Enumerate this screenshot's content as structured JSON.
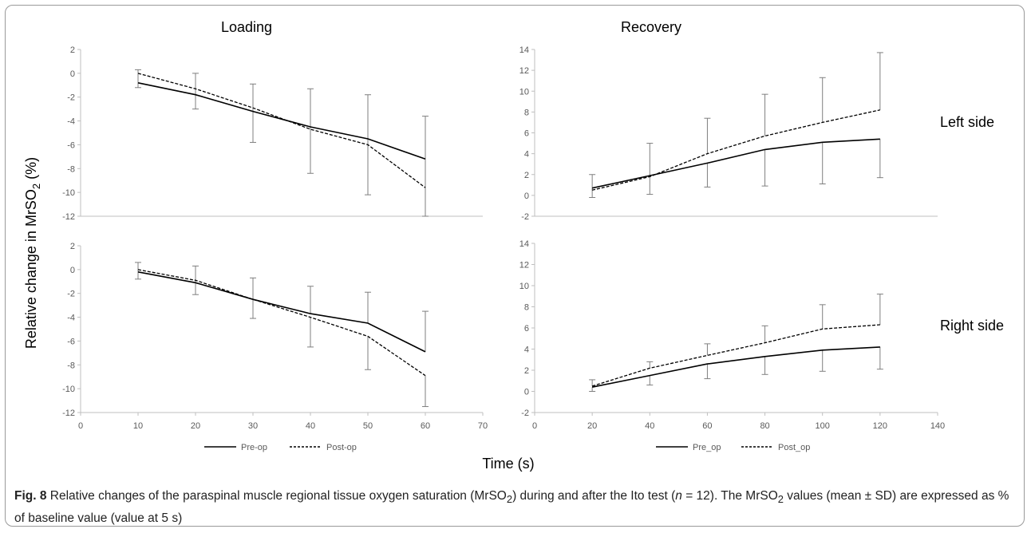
{
  "colors": {
    "axis": "#bfbfbf",
    "series": "#000000",
    "error_bar": "#7f7f7f",
    "text": "#595959"
  },
  "labels": {
    "ylabel_prefix": "Relative change in MrSO",
    "ylabel_sub": "2",
    "ylabel_suffix": " (%)",
    "xlabel": "Time (s)",
    "left_side": "Left side",
    "right_side": "Right side"
  },
  "caption": {
    "fig": "Fig. 8",
    "text1": " Relative changes of the paraspinal muscle regional tissue oxygen saturation (MrSO",
    "sub1": "2",
    "text2": ") during and after the Ito test (",
    "n": "n",
    "text3": " = 12). The MrSO",
    "sub2": "2",
    "text4": " values (mean ± SD) are expressed as % of baseline value (value at 5 s)"
  },
  "chart_data": [
    {
      "id": "loading-left",
      "type": "line",
      "title": "Loading",
      "x": [
        10,
        20,
        30,
        40,
        50,
        60
      ],
      "xlim": [
        0,
        70
      ],
      "xticks": [],
      "ylim": [
        -12,
        2
      ],
      "yticks": [
        2,
        0,
        -2,
        -4,
        -6,
        -8,
        -10,
        -12
      ],
      "series": [
        {
          "name": "",
          "dash": "solid",
          "values": [
            -0.8,
            -1.8,
            -3.2,
            -4.5,
            -5.5,
            -7.2
          ]
        },
        {
          "name": "",
          "dash": "dashed",
          "values": [
            0,
            -1.3,
            -2.9,
            -4.7,
            -6.0,
            -9.6
          ],
          "error_upper": [
            0.3,
            0.0,
            -0.9,
            -1.3,
            -1.8,
            -3.6
          ],
          "error_lower": [
            -1.2,
            -3.0,
            -5.8,
            -8.4,
            -10.2,
            -12
          ]
        }
      ]
    },
    {
      "id": "recovery-left",
      "type": "line",
      "title": "Recovery",
      "x": [
        20,
        40,
        60,
        80,
        100,
        120
      ],
      "xlim": [
        0,
        140
      ],
      "xticks": [],
      "ylim": [
        -2,
        14
      ],
      "yticks": [
        14,
        12,
        10,
        8,
        6,
        4,
        2,
        0,
        -2
      ],
      "series": [
        {
          "name": "",
          "dash": "solid",
          "values": [
            0.7,
            1.9,
            3.1,
            4.4,
            5.1,
            5.4
          ],
          "error_lower": [
            -0.2,
            0.1,
            0.8,
            0.9,
            1.1,
            1.7
          ]
        },
        {
          "name": "",
          "dash": "dashed",
          "values": [
            0.5,
            1.8,
            4.0,
            5.7,
            7.0,
            8.2
          ],
          "error_upper": [
            2.0,
            5.0,
            7.4,
            9.7,
            11.3,
            13.7
          ]
        }
      ]
    },
    {
      "id": "loading-right",
      "type": "line",
      "title": "",
      "x": [
        10,
        20,
        30,
        40,
        50,
        60
      ],
      "xlim": [
        0,
        70
      ],
      "xticks": [
        0,
        10,
        20,
        30,
        40,
        50,
        60,
        70
      ],
      "ylim": [
        -12,
        2
      ],
      "yticks": [
        2,
        0,
        -2,
        -4,
        -6,
        -8,
        -10,
        -12
      ],
      "series": [
        {
          "name": "Pre-op",
          "dash": "solid",
          "values": [
            -0.2,
            -1.1,
            -2.5,
            -3.7,
            -4.5,
            -6.9
          ],
          "error_upper": [
            0.6,
            0.3,
            -0.7,
            -1.4,
            -1.9,
            -3.5
          ]
        },
        {
          "name": "Post-op",
          "dash": "dashed",
          "values": [
            0,
            -0.9,
            -2.5,
            -4.0,
            -5.6,
            -8.9
          ],
          "error_lower": [
            -0.8,
            -2.1,
            -4.1,
            -6.5,
            -8.4,
            -11.5
          ]
        }
      ]
    },
    {
      "id": "recovery-right",
      "type": "line",
      "title": "",
      "x": [
        20,
        40,
        60,
        80,
        100,
        120
      ],
      "xlim": [
        0,
        140
      ],
      "xticks": [
        0,
        20,
        40,
        60,
        80,
        100,
        120,
        140
      ],
      "ylim": [
        -2,
        14
      ],
      "yticks": [
        14,
        12,
        10,
        8,
        6,
        4,
        2,
        0,
        -2
      ],
      "series": [
        {
          "name": "Pre_op",
          "dash": "solid",
          "values": [
            0.4,
            1.5,
            2.6,
            3.3,
            3.9,
            4.2
          ],
          "error_lower": [
            0,
            0.6,
            1.2,
            1.6,
            1.9,
            2.1
          ]
        },
        {
          "name": "Post_op",
          "dash": "dashed",
          "values": [
            0.5,
            2.2,
            3.4,
            4.6,
            5.9,
            6.3
          ],
          "error_upper": [
            1.1,
            2.8,
            4.5,
            6.2,
            8.2,
            9.2
          ]
        }
      ]
    }
  ]
}
